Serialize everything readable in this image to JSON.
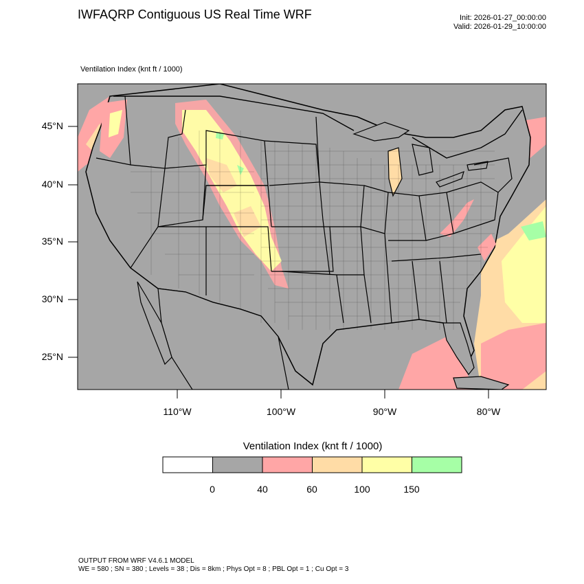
{
  "header": {
    "title": "IWFAQRP Contiguous US Real Time WRF",
    "init": "Init: 2026-01-27_00:00:00",
    "valid": "Valid: 2026-01-29_10:00:00"
  },
  "field_label": "Ventilation Index   (knt ft / 1000)",
  "axes": {
    "lat_labels": [
      "45°N",
      "40°N",
      "35°N",
      "30°N",
      "25°N"
    ],
    "lon_labels": [
      "110°W",
      "100°W",
      "90°W",
      "80°W"
    ]
  },
  "legend": {
    "title": "Ventilation Index  (knt ft / 1000)",
    "bins": [
      {
        "color": "#ffffff"
      },
      {
        "color": "#a6a6a6"
      },
      {
        "color": "#ffa6a6"
      },
      {
        "color": "#ffdca6"
      },
      {
        "color": "#ffffa6"
      },
      {
        "color": "#a6ffa6"
      }
    ],
    "labels": [
      "0",
      "40",
      "60",
      "100",
      "150"
    ]
  },
  "colors": {
    "land_gray": "#a6a6a6",
    "pink": "#ffa6a6",
    "orange": "#ffdca6",
    "yellow": "#ffffa6",
    "green": "#a6ffa6"
  },
  "footer": {
    "line1": "OUTPUT FROM WRF V4.6.1 MODEL",
    "line2": "WE = 580 ; SN = 380 ; Levels = 38 ; Dis = 8km ; Phys Opt = 8 ; PBL Opt = 1 ; Cu Opt = 3"
  }
}
